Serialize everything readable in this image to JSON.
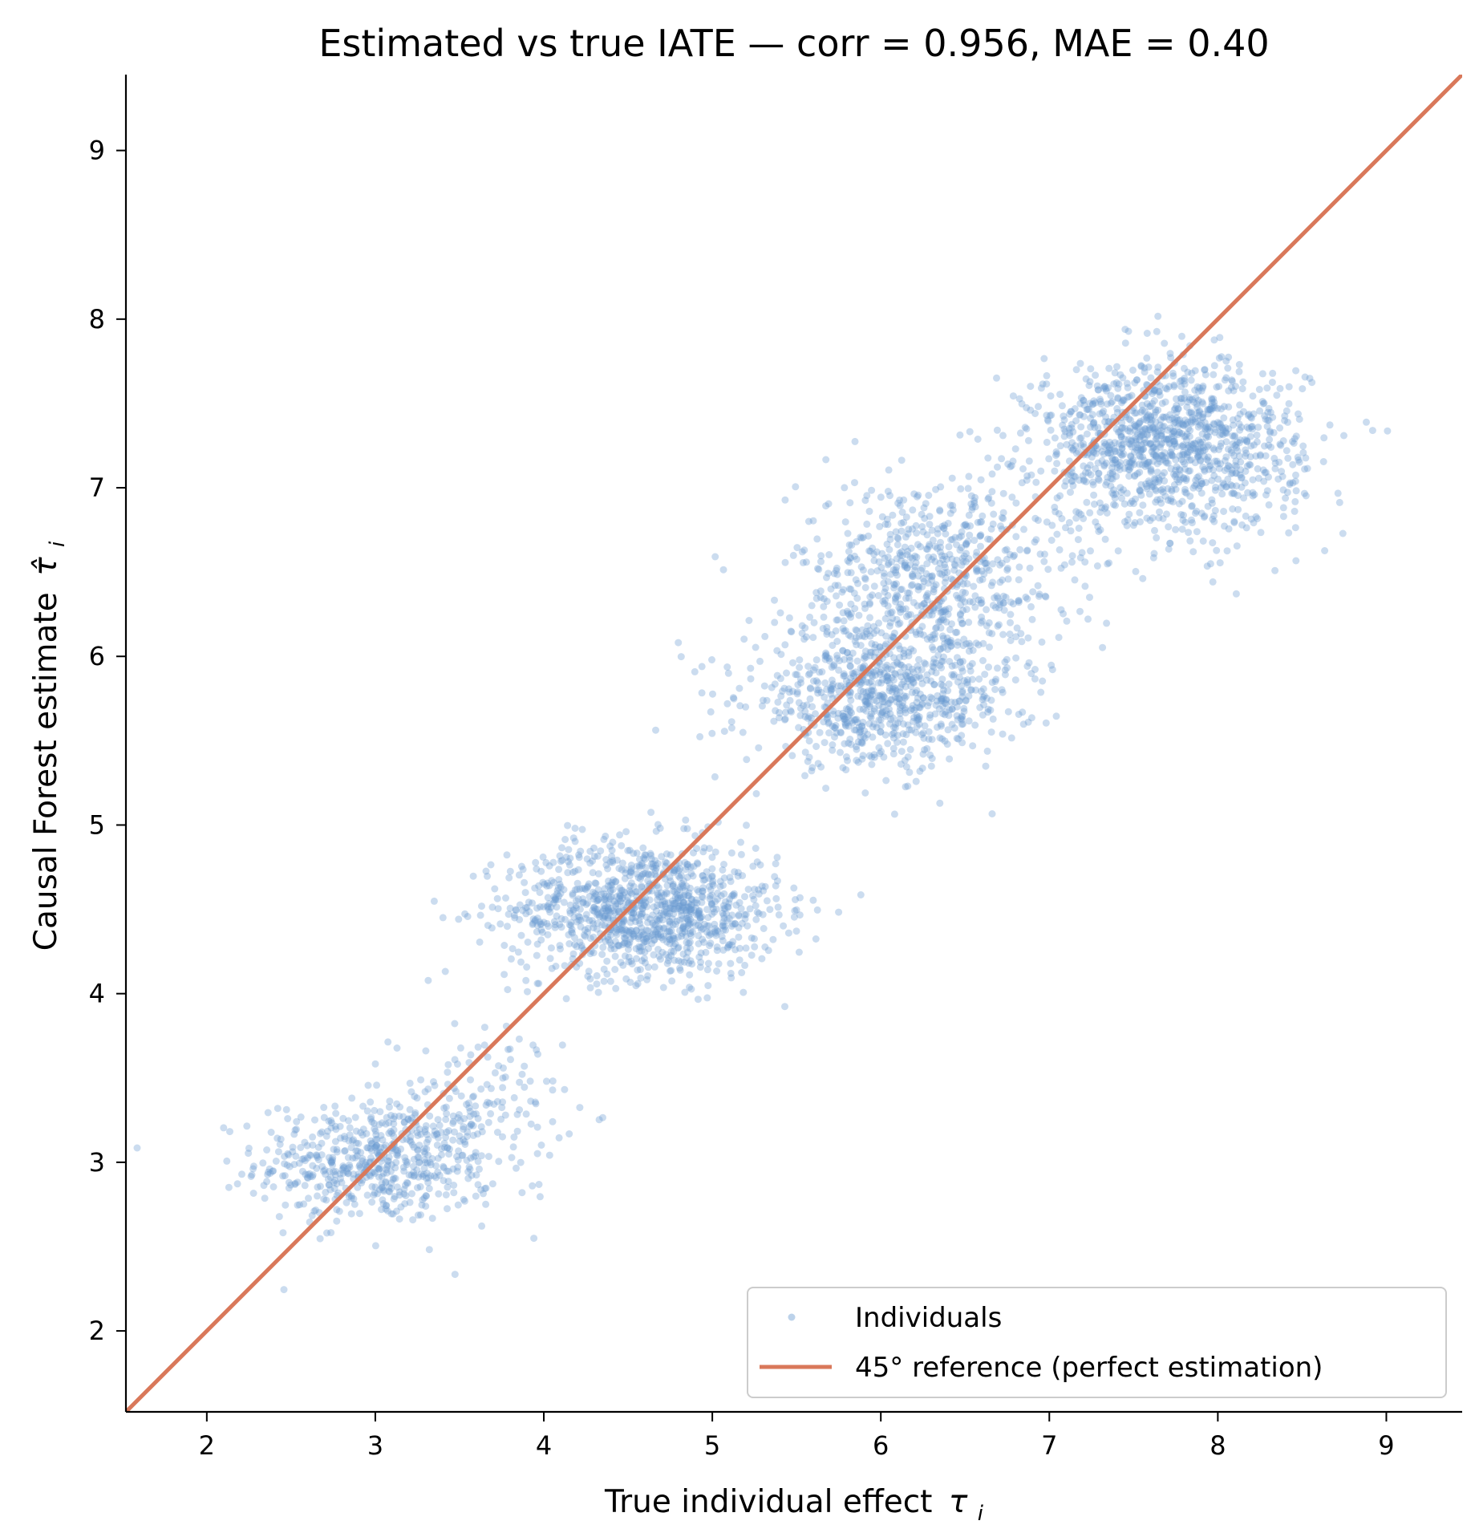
{
  "chart_data": {
    "type": "scatter",
    "title": "Estimated vs true IATE  —  corr = 0.956,  MAE = 0.40",
    "xlabel": "True individual effect",
    "xlabel_symbol": "τ",
    "xlabel_subscript": "i",
    "ylabel": "Causal Forest estimate",
    "ylabel_symbol": "τ̂",
    "ylabel_subscript": "i",
    "xlim": [
      1.52,
      9.45
    ],
    "ylim": [
      1.52,
      9.45
    ],
    "x_ticks": [
      "2",
      "3",
      "4",
      "5",
      "6",
      "7",
      "8",
      "9"
    ],
    "y_ticks": [
      "2",
      "3",
      "4",
      "5",
      "6",
      "7",
      "8",
      "9"
    ],
    "grid": false,
    "legend_position": "lower-right",
    "series": [
      {
        "name": "Individuals",
        "kind": "scatter",
        "color": "#6b9bd1",
        "opacity": 0.35,
        "clusters": [
          {
            "center_x": 3.0,
            "center_y": 3.0,
            "spread_x": 0.35,
            "spread_y": 0.18,
            "n": 550
          },
          {
            "center_x": 3.6,
            "center_y": 3.3,
            "spread_x": 0.25,
            "spread_y": 0.25,
            "n": 150
          },
          {
            "center_x": 4.6,
            "center_y": 4.5,
            "spread_x": 0.4,
            "spread_y": 0.2,
            "n": 1100
          },
          {
            "center_x": 6.3,
            "center_y": 6.45,
            "spread_x": 0.4,
            "spread_y": 0.3,
            "n": 700
          },
          {
            "center_x": 6.0,
            "center_y": 5.75,
            "spread_x": 0.4,
            "spread_y": 0.2,
            "n": 750
          },
          {
            "center_x": 7.7,
            "center_y": 7.25,
            "spread_x": 0.4,
            "spread_y": 0.25,
            "n": 1200
          }
        ]
      },
      {
        "name": "45° reference (perfect estimation)",
        "kind": "line",
        "color": "#d9785a",
        "x": [
          1.52,
          9.45
        ],
        "y": [
          1.52,
          9.45
        ]
      }
    ]
  }
}
